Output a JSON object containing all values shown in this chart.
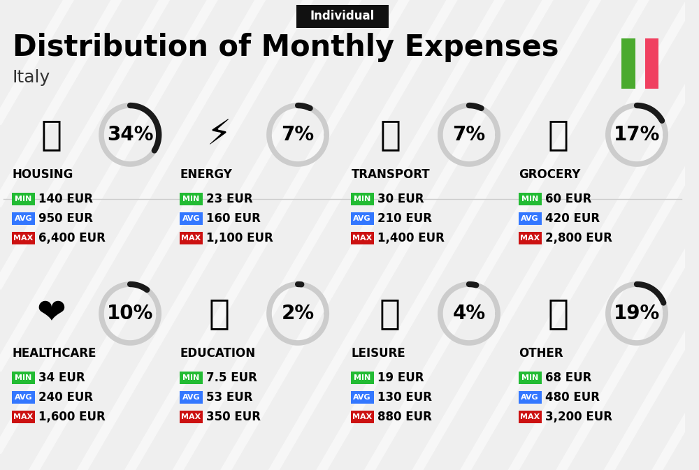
{
  "title": "Distribution of Monthly Expenses",
  "subtitle": "Individual",
  "country": "Italy",
  "bg_color": "#efefef",
  "categories": [
    {
      "name": "HOUSING",
      "pct": 34,
      "min": "140 EUR",
      "avg": "950 EUR",
      "max": "6,400 EUR",
      "emoji": "🏢",
      "row": 0,
      "col": 0
    },
    {
      "name": "ENERGY",
      "pct": 7,
      "min": "23 EUR",
      "avg": "160 EUR",
      "max": "1,100 EUR",
      "emoji": "⚡",
      "row": 0,
      "col": 1
    },
    {
      "name": "TRANSPORT",
      "pct": 7,
      "min": "30 EUR",
      "avg": "210 EUR",
      "max": "1,400 EUR",
      "emoji": "🚌",
      "row": 0,
      "col": 2
    },
    {
      "name": "GROCERY",
      "pct": 17,
      "min": "60 EUR",
      "avg": "420 EUR",
      "max": "2,800 EUR",
      "emoji": "🛒",
      "row": 0,
      "col": 3
    },
    {
      "name": "HEALTHCARE",
      "pct": 10,
      "min": "34 EUR",
      "avg": "240 EUR",
      "max": "1,600 EUR",
      "emoji": "❤️",
      "row": 1,
      "col": 0
    },
    {
      "name": "EDUCATION",
      "pct": 2,
      "min": "7.5 EUR",
      "avg": "53 EUR",
      "max": "350 EUR",
      "emoji": "🎓",
      "row": 1,
      "col": 1
    },
    {
      "name": "LEISURE",
      "pct": 4,
      "min": "19 EUR",
      "avg": "130 EUR",
      "max": "880 EUR",
      "emoji": "🛍️",
      "row": 1,
      "col": 2
    },
    {
      "name": "OTHER",
      "pct": 19,
      "min": "68 EUR",
      "avg": "480 EUR",
      "max": "3,200 EUR",
      "emoji": "💰",
      "row": 1,
      "col": 3
    }
  ],
  "min_color": "#22bb33",
  "avg_color": "#3377ff",
  "max_color": "#cc1111",
  "arc_dark_color": "#1a1a1a",
  "arc_light_color": "#cccccc",
  "flag_green": "#4aaa2e",
  "flag_red": "#f04060",
  "title_fontsize": 30,
  "subtitle_fontsize": 12,
  "country_fontsize": 18,
  "cat_fontsize": 12,
  "pct_fontsize": 20,
  "badge_fontsize": 8,
  "val_fontsize": 12,
  "icon_fontsize": 36,
  "stripe_color": "#ffffff",
  "stripe_alpha": 0.55,
  "stripe_lw": 10
}
